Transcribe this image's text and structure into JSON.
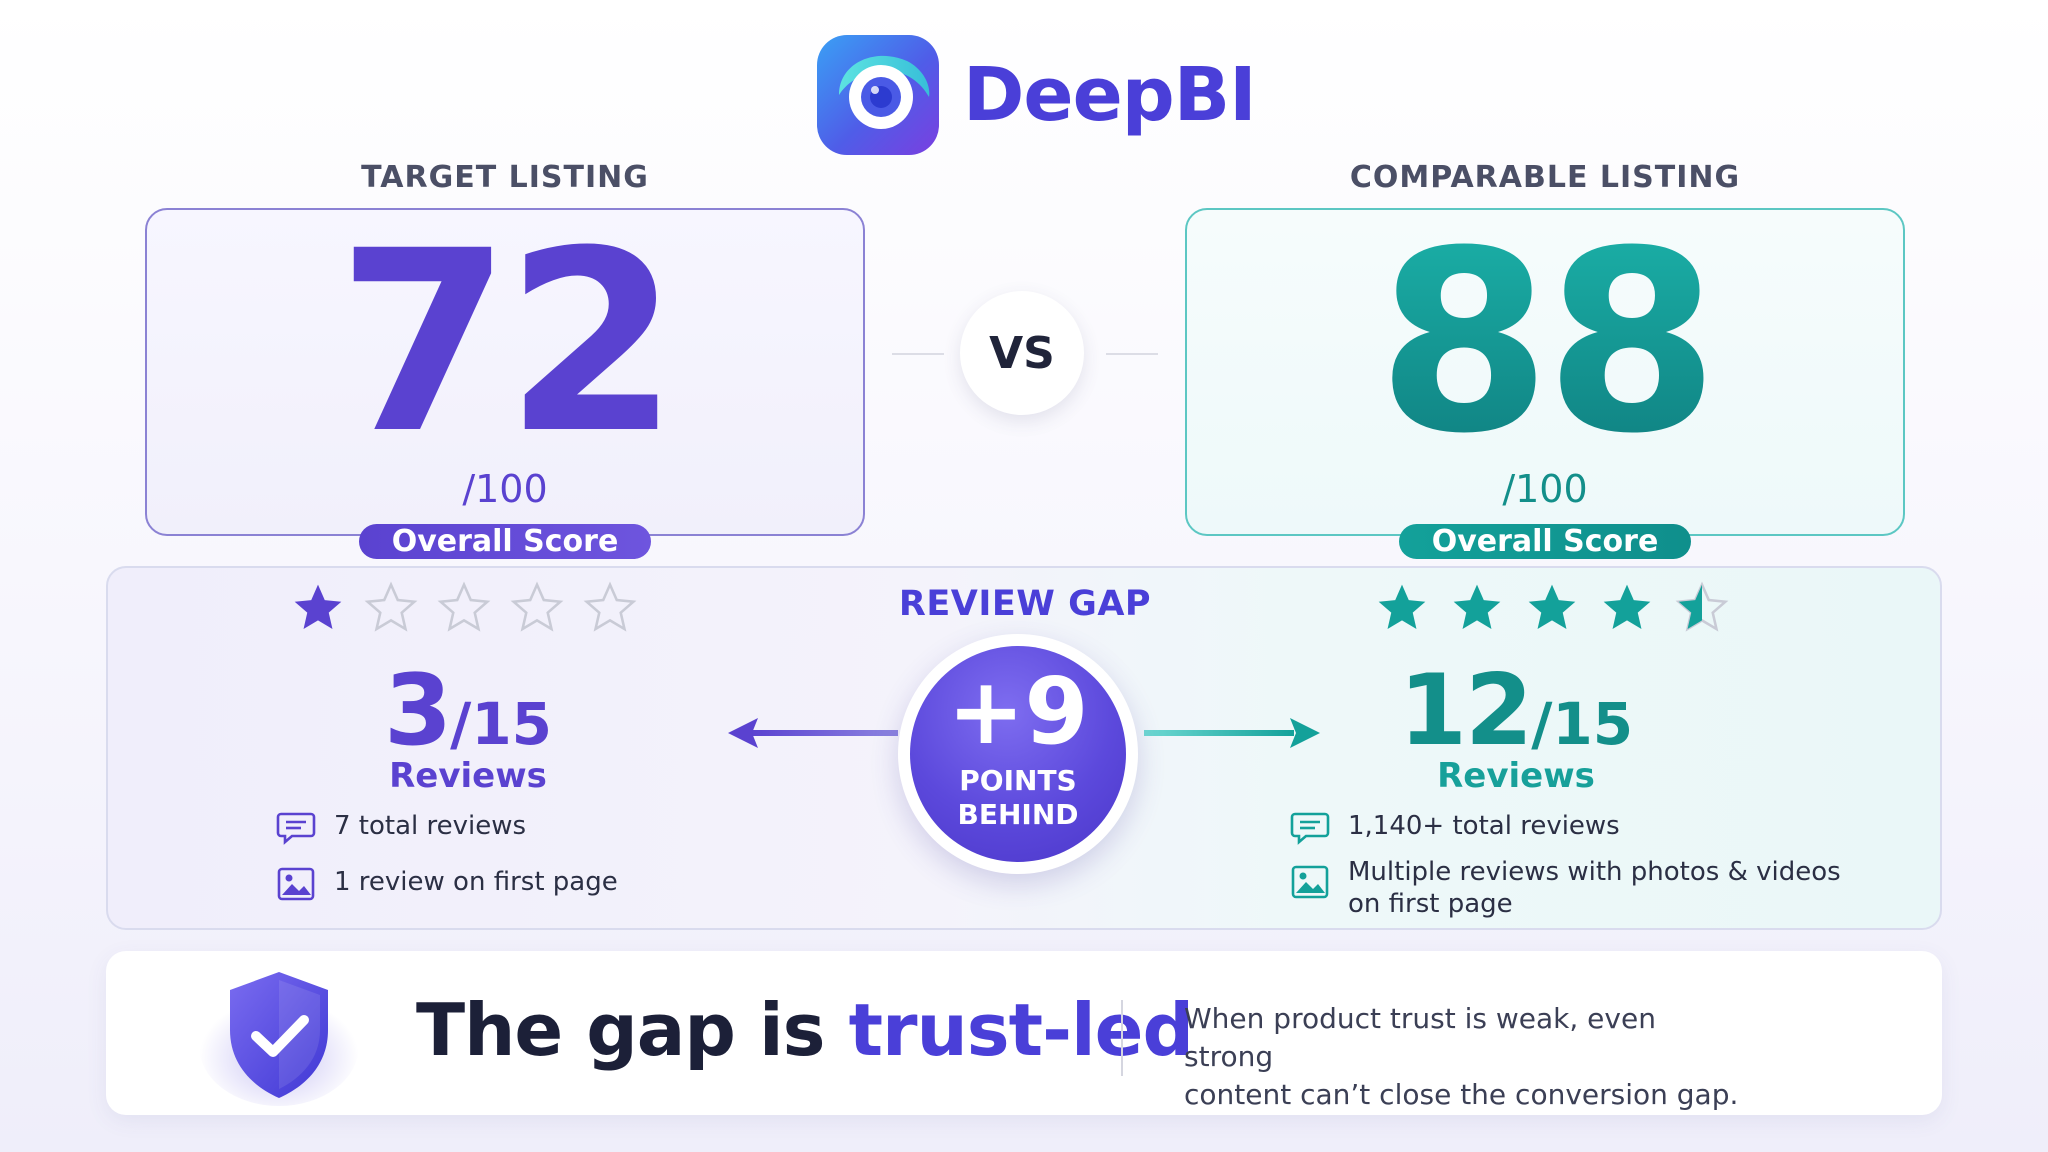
{
  "brand": {
    "name": "DeepBI",
    "colors": {
      "primary": "#4a3fd8",
      "teal": "#138f8a",
      "dark": "#1c2038"
    },
    "logo_icon": "deepbi-logo-icon"
  },
  "comparison": {
    "vs_label": "VS",
    "target": {
      "heading": "TARGET LISTING",
      "score": "72",
      "out_of": "/100",
      "pill": "Overall Score"
    },
    "comparable": {
      "heading": "COMPARABLE LISTING",
      "score": "88",
      "out_of": "/100",
      "pill": "Overall Score"
    }
  },
  "reviews": {
    "gap_title": "REVIEW GAP",
    "gap_value": "+9",
    "gap_caption_line1": "POINTS",
    "gap_caption_line2": "BEHIND",
    "target": {
      "stars_filled": 1,
      "stars_total": 5,
      "score": "3",
      "score_out_of": "/15",
      "label": "Reviews",
      "details": [
        {
          "icon": "chat-icon",
          "text": "7 total reviews"
        },
        {
          "icon": "image-icon",
          "text": "1 review on first page"
        }
      ]
    },
    "comparable": {
      "stars_filled": 4.5,
      "stars_total": 5,
      "score": "12",
      "score_out_of": "/15",
      "label": "Reviews",
      "details": [
        {
          "icon": "chat-icon",
          "text": "1,140+ total reviews"
        },
        {
          "icon": "image-icon",
          "text_line1": "Multiple reviews with photos & videos",
          "text_line2": "on first page"
        }
      ]
    }
  },
  "banner": {
    "icon": "shield-check-icon",
    "headline_prefix": "The gap is ",
    "headline_accent": "trust-led",
    "subtext_line1": "When product trust is weak, even strong",
    "subtext_line2": "content can’t close the conversion gap."
  }
}
